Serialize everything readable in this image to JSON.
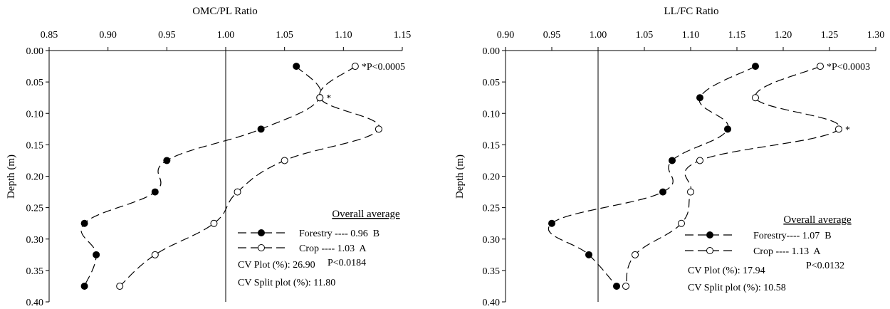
{
  "chart_data": [
    {
      "type": "line",
      "title": "OMC/PL Ratio",
      "xlabel": "OMC/PL Ratio",
      "ylabel": "Depth (m)",
      "x_ticks": [
        "0.85",
        "0.90",
        "0.95",
        "1.00",
        "1.05",
        "1.10",
        "1.15"
      ],
      "y_ticks": [
        "0.00",
        "0.05",
        "0.10",
        "0.15",
        "0.20",
        "0.25",
        "0.30",
        "0.35",
        "0.40"
      ],
      "xlim": [
        0.85,
        1.15
      ],
      "ylim": [
        0.0,
        0.4
      ],
      "y_inverted": true,
      "x_axis_position": "top",
      "reference_line_x": 1.0,
      "depths": [
        0.025,
        0.075,
        0.125,
        0.175,
        0.225,
        0.275,
        0.325,
        0.375
      ],
      "series": [
        {
          "name": "Forestry",
          "marker": "filled-circle",
          "values": [
            1.06,
            1.08,
            1.03,
            0.95,
            0.94,
            0.88,
            0.89,
            0.88
          ]
        },
        {
          "name": "Crop",
          "marker": "open-circle",
          "values": [
            1.11,
            1.08,
            1.13,
            1.05,
            1.01,
            0.99,
            0.94,
            0.91
          ]
        }
      ],
      "annotations": [
        {
          "text": "*P<0.0005",
          "x": 1.11,
          "y": 0.025
        },
        {
          "text": "*",
          "x": 1.08,
          "y": 0.075
        }
      ],
      "legend": {
        "title": "Overall average",
        "entries": [
          "Forestry ---- 0.96  B",
          "Crop ---- 1.03  A"
        ],
        "pvalue": "P<0.0184",
        "cv_plot": "CV Plot (%): 26.90",
        "cv_split": "CV Split plot (%): 11.80"
      }
    },
    {
      "type": "line",
      "title": "LL/FC Ratio",
      "xlabel": "LL/FC Ratio",
      "ylabel": "Depth (m)",
      "x_ticks": [
        "0.90",
        "0.95",
        "1.00",
        "1.05",
        "1.10",
        "1.15",
        "1.20",
        "1.25",
        "1.30"
      ],
      "y_ticks": [
        "0.00",
        "0.05",
        "0.10",
        "0.15",
        "0.20",
        "0.25",
        "0.30",
        "0.35",
        "0.40"
      ],
      "xlim": [
        0.9,
        1.3
      ],
      "ylim": [
        0.0,
        0.4
      ],
      "y_inverted": true,
      "x_axis_position": "top",
      "reference_line_x": 1.0,
      "depths": [
        0.025,
        0.075,
        0.125,
        0.175,
        0.225,
        0.275,
        0.325,
        0.375
      ],
      "series": [
        {
          "name": "Forestry",
          "marker": "filled-circle",
          "values": [
            1.17,
            1.11,
            1.14,
            1.08,
            1.07,
            0.95,
            0.99,
            1.02
          ]
        },
        {
          "name": "Crop",
          "marker": "open-circle",
          "values": [
            1.24,
            1.17,
            1.26,
            1.11,
            1.1,
            1.09,
            1.04,
            1.03
          ]
        }
      ],
      "annotations": [
        {
          "text": "*P<0.0003",
          "x": 1.24,
          "y": 0.025
        },
        {
          "text": "*",
          "x": 1.26,
          "y": 0.125
        }
      ],
      "legend": {
        "title": "Overall average",
        "entries": [
          "Forestry---- 1.07  B",
          "Crop ---- 1.13  A"
        ],
        "pvalue": "P<0.0132",
        "cv_plot": "CV Plot (%): 17.94",
        "cv_split": "CV Split plot (%): 10.58"
      }
    }
  ]
}
